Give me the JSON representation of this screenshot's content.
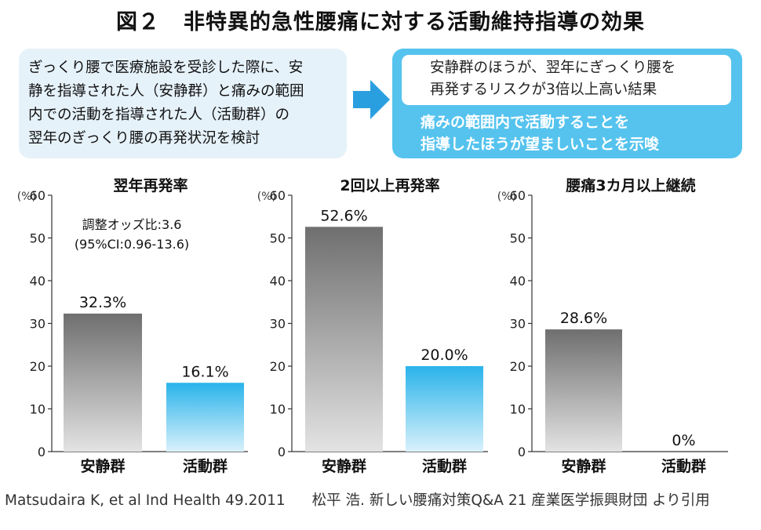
{
  "title": {
    "figure_num": "図２",
    "text": "非特異的急性腰痛に対する活動維持指導の効果"
  },
  "summary": {
    "lines": [
      "ぎっくり腰で医療施設を受診した際に、安",
      "静を指導された人（安静群）と痛みの範囲",
      "内での活動を指導された人（活動群）の",
      "翌年のぎっくり腰の再発状況を検討"
    ]
  },
  "result": {
    "finding_lines": [
      "安静群のほうが、翌年にぎっくり腰を",
      "再発するリスクが3倍以上高い結果"
    ],
    "implication_lines": [
      "痛みの範囲内で活動することを",
      "指導したほうが望ましいことを示唆"
    ]
  },
  "colors": {
    "rest_bar_top": "#6f6f6f",
    "rest_bar_bottom": "#e3e3e3",
    "active_bar_top": "#29b3ea",
    "active_bar_bottom": "#d9f1fb",
    "accent": "#55c3ee",
    "summary_bg": "#e6f2fa"
  },
  "chart_data": [
    {
      "type": "bar",
      "title": "翌年再発率",
      "unit_label": "(%)",
      "ylim": [
        0,
        60
      ],
      "yticks": [
        "0",
        "10",
        "20",
        "30",
        "40",
        "50",
        "60"
      ],
      "categories": [
        "安静群",
        "活動群"
      ],
      "values": [
        32.3,
        16.1
      ],
      "value_labels": [
        "32.3%",
        "16.1%"
      ],
      "annotation_lines": [
        "調整オッズ比:3.6",
        "(95%CI:0.96-13.6)"
      ]
    },
    {
      "type": "bar",
      "title": "2回以上再発率",
      "unit_label": "(%)",
      "ylim": [
        0,
        60
      ],
      "yticks": [
        "0",
        "10",
        "20",
        "30",
        "40",
        "50",
        "60"
      ],
      "categories": [
        "安静群",
        "活動群"
      ],
      "values": [
        52.6,
        20.0
      ],
      "value_labels": [
        "52.6%",
        "20.0%"
      ],
      "annotation_lines": []
    },
    {
      "type": "bar",
      "title": "腰痛3カ月以上継続",
      "unit_label": "(%)",
      "ylim": [
        0,
        60
      ],
      "yticks": [
        "0",
        "10",
        "20",
        "30",
        "40",
        "50",
        "60"
      ],
      "categories": [
        "安静群",
        "活動群"
      ],
      "values": [
        28.6,
        0
      ],
      "value_labels": [
        "28.6%",
        "0%"
      ],
      "annotation_lines": []
    }
  ],
  "source": {
    "left": "Matsudaira K, et al Ind Health 49.2011",
    "right": "松平 浩. 新しい腰痛対策Q&A 21 産業医学振興財団 より引用"
  }
}
